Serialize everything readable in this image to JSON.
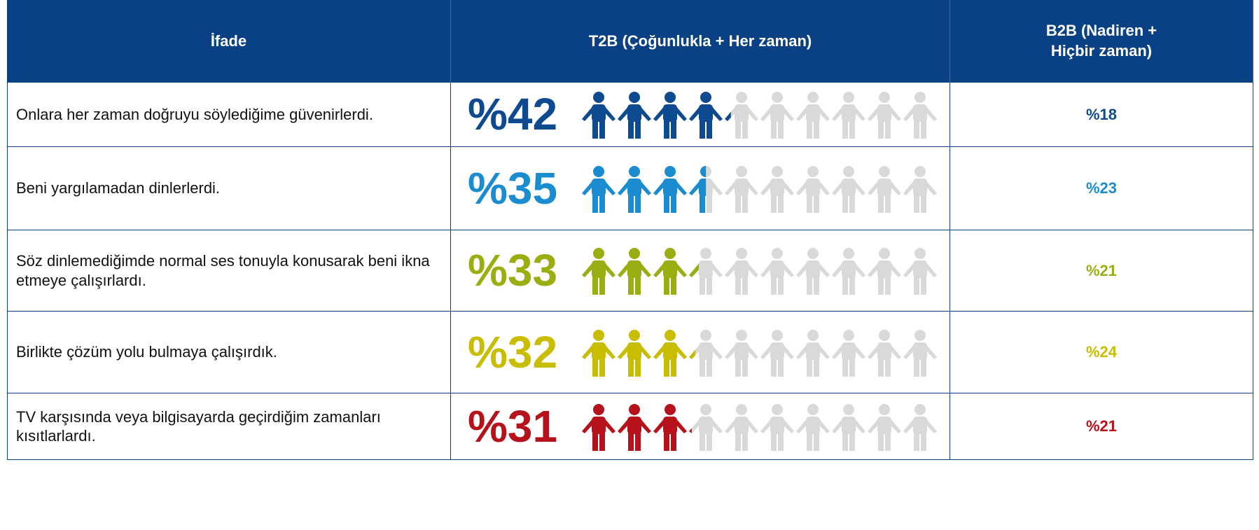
{
  "table": {
    "header": [
      "İfade",
      "T2B (Çoğunlukla + Her zaman)",
      "B2B (Nadiren + Hiçbir zaman)"
    ],
    "icon_count": 10,
    "icon_color_empty": "#d9d9d9",
    "rows": [
      {
        "statement": "Onlara  her zaman doğruyu söylediğime güvenirlerdi.",
        "t2b": {
          "value": 42,
          "label": "%42"
        },
        "b2b": {
          "value": 18,
          "label": "%18"
        },
        "color": "#0d4a8f"
      },
      {
        "statement": "Beni yargılamadan dinlerlerdi.",
        "t2b": {
          "value": 35,
          "label": "%35"
        },
        "b2b": {
          "value": 23,
          "label": "%23"
        },
        "color": "#1a8ccf"
      },
      {
        "statement": "Söz dinlemediğimde normal ses tonuyla konusarak beni ikna etmeye çalışırlardı.",
        "t2b": {
          "value": 33,
          "label": "%33"
        },
        "b2b": {
          "value": 21,
          "label": "%21"
        },
        "color": "#9aae12"
      },
      {
        "statement": "Birlikte çözüm yolu bulmaya çalışırdık.",
        "t2b": {
          "value": 32,
          "label": "%32"
        },
        "b2b": {
          "value": 24,
          "label": "%24"
        },
        "color": "#c8bd00"
      },
      {
        "statement": "TV karşısında veya bilgisayarda geçirdiğim zamanları kısıtlarlardı.",
        "t2b": {
          "value": 31,
          "label": "%31"
        },
        "b2b": {
          "value": 21,
          "label": "%21"
        },
        "color": "#b5121b"
      }
    ]
  }
}
